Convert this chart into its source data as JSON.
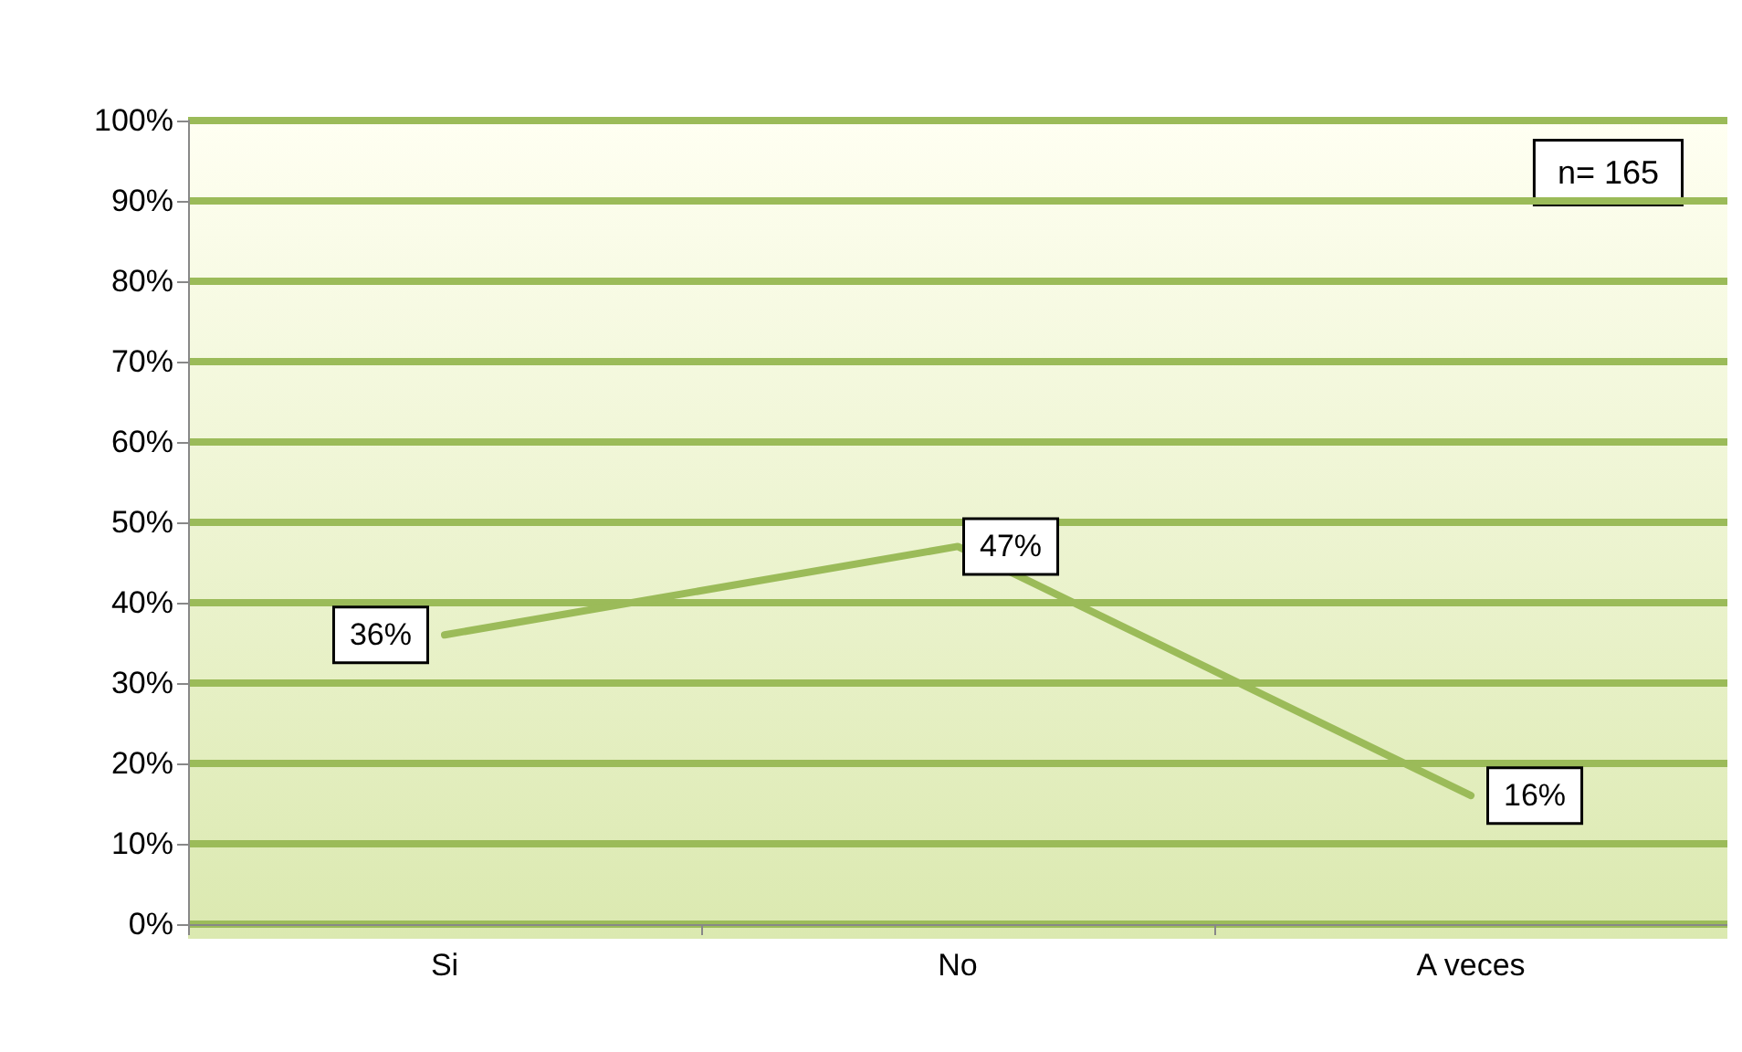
{
  "chart_data": {
    "type": "line",
    "categories": [
      "Si",
      "No",
      "A veces"
    ],
    "series": [
      {
        "color": "#9bbb59",
        "values": [
          36,
          47,
          16
        ],
        "value_labels": [
          "36%",
          "47%",
          "16%"
        ]
      }
    ],
    "ylim": [
      0,
      100
    ],
    "yticks": [
      {
        "value": 0,
        "label": "0%"
      },
      {
        "value": 10,
        "label": "10%"
      },
      {
        "value": 20,
        "label": "20%"
      },
      {
        "value": 30,
        "label": "30%"
      },
      {
        "value": 40,
        "label": "40%"
      },
      {
        "value": 50,
        "label": "50%"
      },
      {
        "value": 60,
        "label": "60%"
      },
      {
        "value": 70,
        "label": "70%"
      },
      {
        "value": 80,
        "label": "80%"
      },
      {
        "value": 90,
        "label": "90%"
      },
      {
        "value": 100,
        "label": "100%"
      }
    ],
    "grid": "y",
    "marker": "none",
    "line_style": "solid",
    "annotations": [
      "n= 165"
    ]
  }
}
